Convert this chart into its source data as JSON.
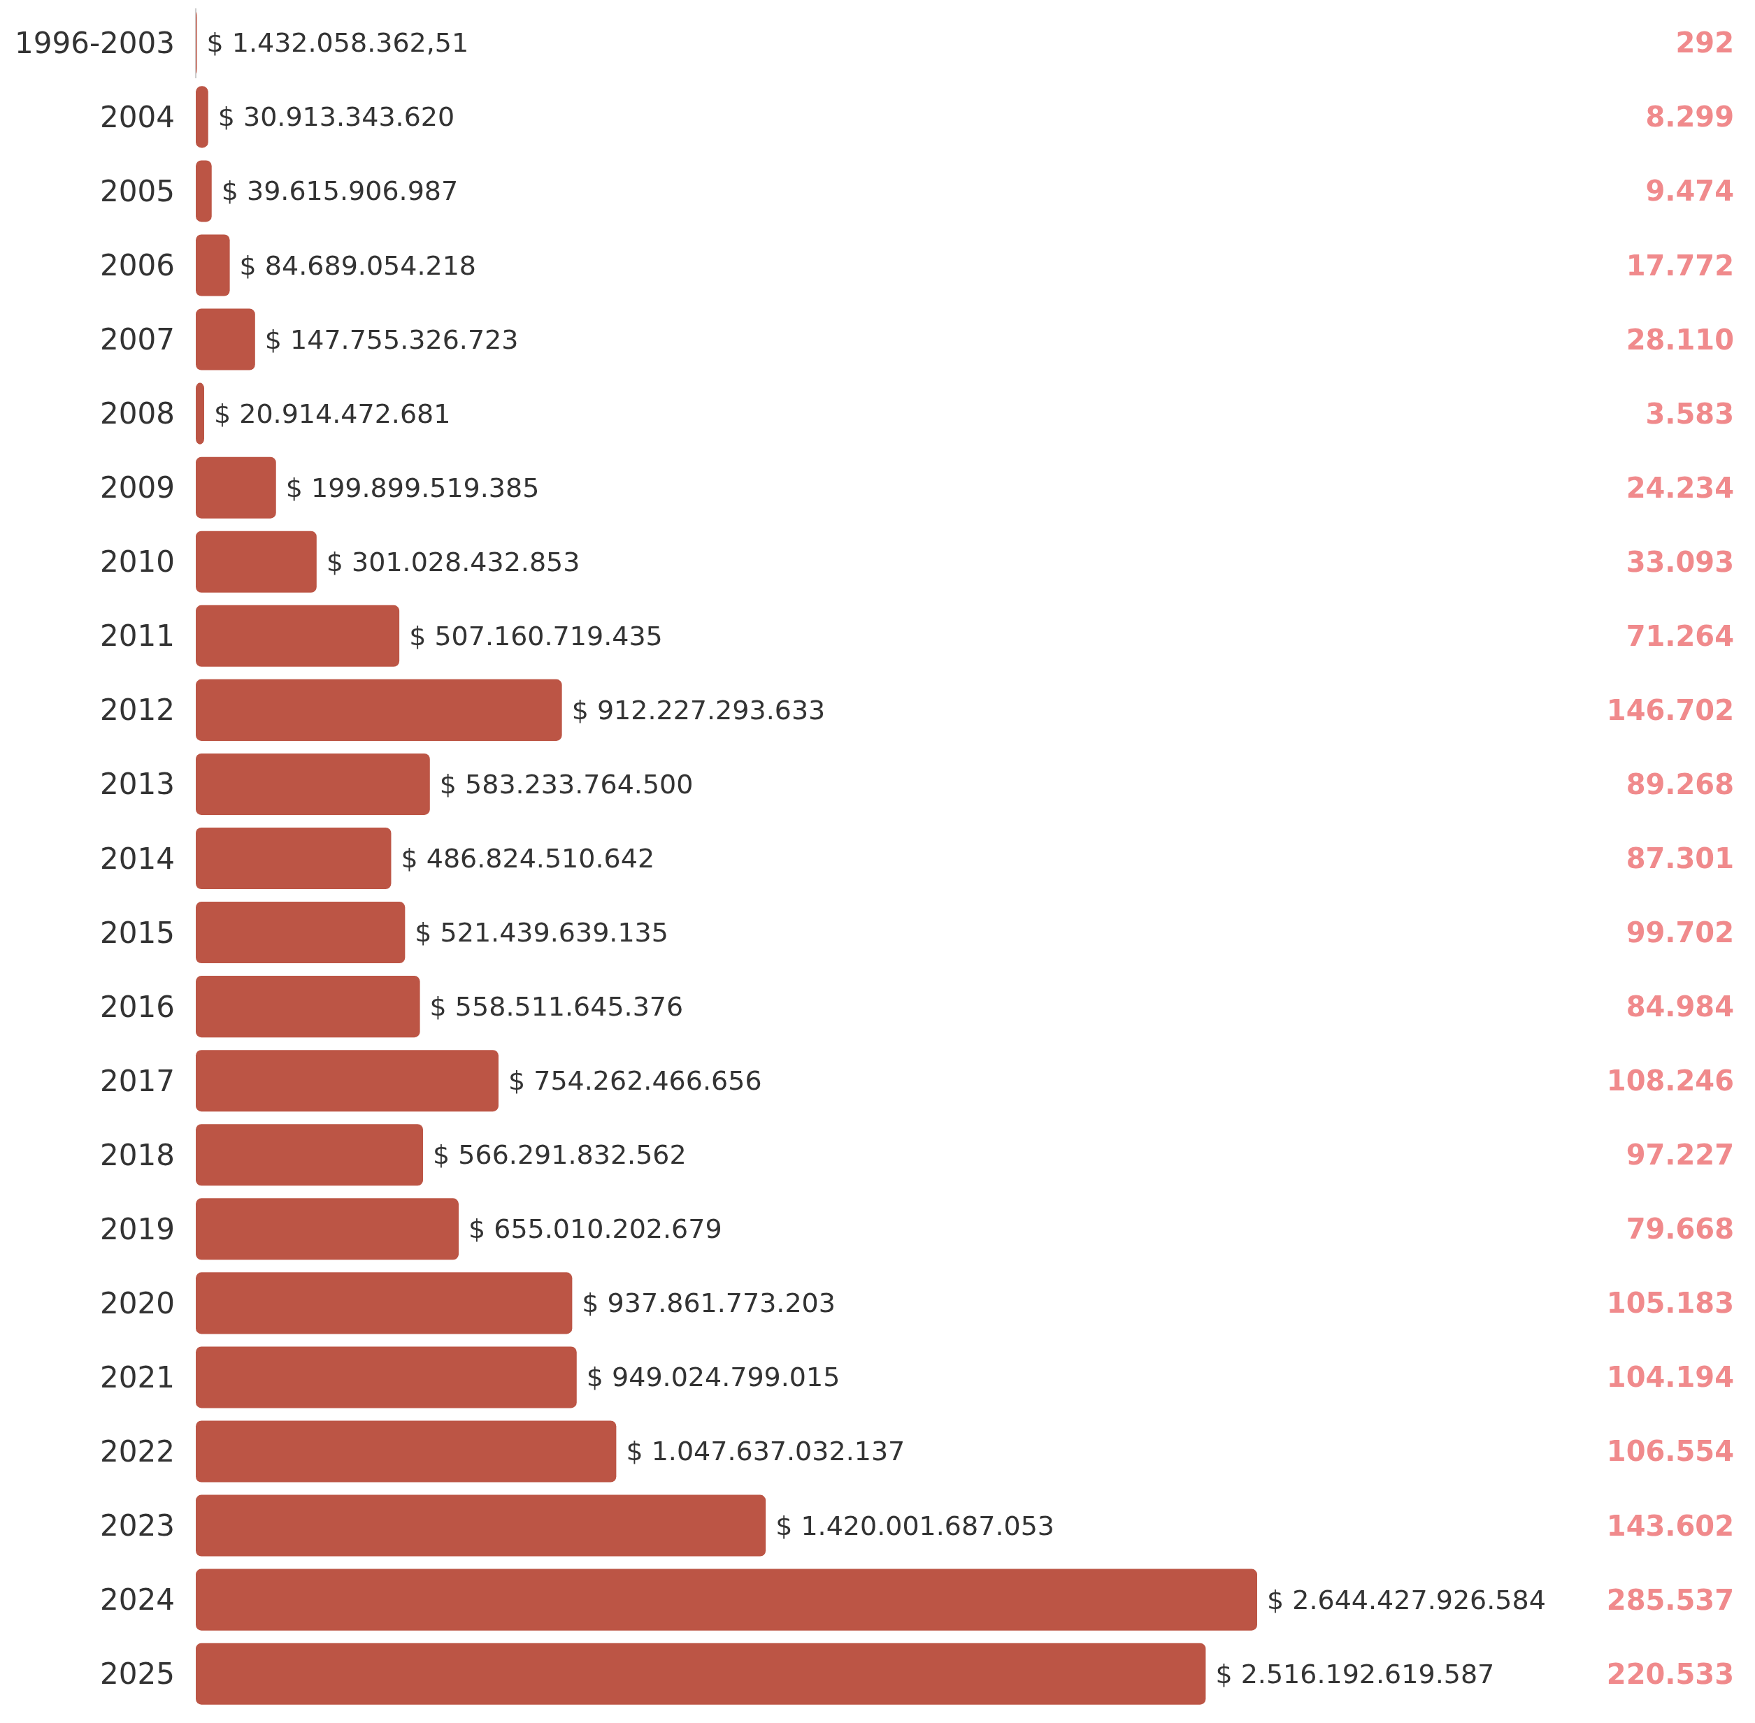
{
  "chart_data": {
    "type": "bar",
    "orientation": "horizontal",
    "categories": [
      "1996-2003",
      "2004",
      "2005",
      "2006",
      "2007",
      "2008",
      "2009",
      "2010",
      "2011",
      "2012",
      "2013",
      "2014",
      "2015",
      "2016",
      "2017",
      "2018",
      "2019",
      "2020",
      "2021",
      "2022",
      "2023",
      "2024",
      "2025"
    ],
    "series": [
      {
        "color": "#bc5545",
        "values": [
          1432058362.51,
          30913343620,
          39615906987,
          84689054218,
          147755326723,
          20914472681,
          199899519385,
          301028432853,
          507160719435,
          912227293633,
          583233764500,
          486824510642,
          521439639135,
          558511645376,
          754262466656,
          566291832562,
          655010202679,
          937861773203,
          949024799015,
          1047637032137,
          1420001687053,
          2644427926584,
          2516192619587
        ],
        "value_labels": [
          "$ 1.432.058.362,51",
          "$ 30.913.343.620",
          "$ 39.615.906.987",
          "$ 84.689.054.218",
          "$ 147.755.326.723",
          "$ 20.914.472.681",
          "$ 199.899.519.385",
          "$ 301.028.432.853",
          "$ 507.160.719.435",
          "$ 912.227.293.633",
          "$ 583.233.764.500",
          "$ 486.824.510.642",
          "$ 521.439.639.135",
          "$ 558.511.645.376",
          "$ 754.262.466.656",
          "$ 566.291.832.562",
          "$ 655.010.202.679",
          "$ 937.861.773.203",
          "$ 949.024.799.015",
          "$ 1.047.637.032.137",
          "$ 1.420.001.687.053",
          "$ 2.644.427.926.584",
          "$ 2.516.192.619.587"
        ]
      }
    ],
    "annotations": [
      "292",
      "8.299",
      "9.474",
      "17.772",
      "28.110",
      "3.583",
      "24.234",
      "33.093",
      "71.264",
      "146.702",
      "89.268",
      "87.301",
      "99.702",
      "84.984",
      "108.246",
      "97.227",
      "79.668",
      "105.183",
      "104.194",
      "106.554",
      "143.602",
      "285.537",
      "220.533"
    ]
  }
}
